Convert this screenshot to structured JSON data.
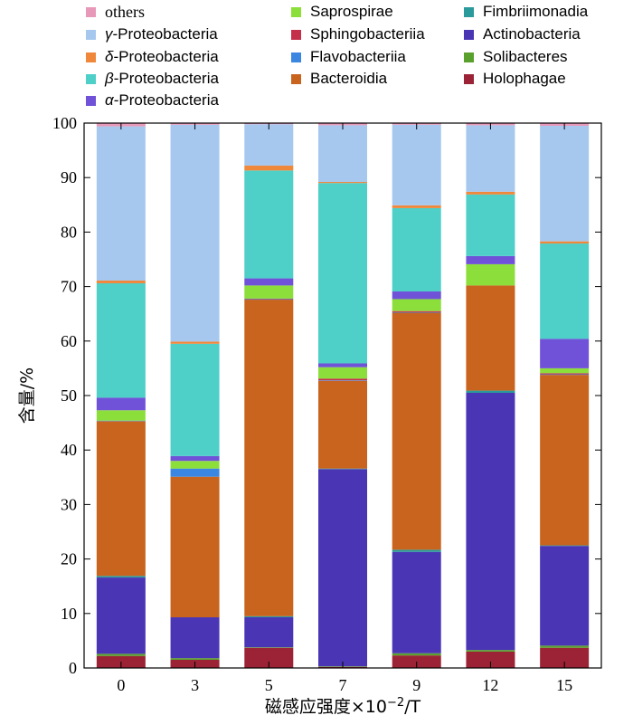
{
  "chart_data": {
    "type": "bar",
    "stacked": true,
    "xlabel_prefix": "磁感应强度×10",
    "xlabel_exp": "−2",
    "xlabel_suffix": "/T",
    "ylabel": "含量/%",
    "ylim": [
      0,
      100
    ],
    "yticks": [
      0,
      10,
      20,
      30,
      40,
      50,
      60,
      70,
      80,
      90,
      100
    ],
    "categories": [
      "0",
      "3",
      "5",
      "7",
      "9",
      "12",
      "15"
    ],
    "legend_position": "top",
    "series": [
      {
        "name": "Holophagae",
        "color": "#9b2335",
        "values": [
          2.2,
          1.5,
          3.7,
          0.2,
          2.3,
          3.0,
          3.7
        ]
      },
      {
        "name": "Solibacteres",
        "color": "#5aa02c",
        "values": [
          0.4,
          0.3,
          0.1,
          0.1,
          0.4,
          0.3,
          0.4
        ]
      },
      {
        "name": "Actinobacteria",
        "color": "#4a35b5",
        "values": [
          14.0,
          7.5,
          5.5,
          36.2,
          18.6,
          47.2,
          18.3
        ]
      },
      {
        "name": "Fimbriimonadia",
        "color": "#2a9a9a",
        "values": [
          0.3,
          0.0,
          0.2,
          0.1,
          0.4,
          0.4,
          0.1
        ]
      },
      {
        "name": "Bacteroidia",
        "color": "#c8641e",
        "values": [
          28.4,
          25.8,
          58.1,
          16.1,
          43.5,
          19.3,
          31.3
        ]
      },
      {
        "name": "Flavobacteriia",
        "color": "#3a86e0",
        "values": [
          0.1,
          1.5,
          0.1,
          0.1,
          0.1,
          0.0,
          0.1
        ]
      },
      {
        "name": "Sphingobacteriia",
        "color": "#c4304a",
        "values": [
          0.0,
          0.0,
          0.1,
          0.3,
          0.2,
          0.0,
          0.2
        ]
      },
      {
        "name": "Saprospirae",
        "color": "#8cde3a",
        "values": [
          1.9,
          1.4,
          2.4,
          2.1,
          2.2,
          3.9,
          0.9
        ]
      },
      {
        "name": "α-Proteobacteria",
        "color": "#7052d8",
        "values": [
          2.3,
          0.9,
          1.3,
          0.7,
          1.4,
          1.5,
          5.4
        ]
      },
      {
        "name": "β-Proteobacteria",
        "color": "#4ecfc8",
        "values": [
          21.0,
          20.6,
          19.8,
          33.1,
          15.3,
          11.3,
          17.5
        ]
      },
      {
        "name": "δ-Proteobacteria",
        "color": "#f0883c",
        "values": [
          0.5,
          0.4,
          0.9,
          0.2,
          0.5,
          0.5,
          0.4
        ]
      },
      {
        "name": "γ-Proteobacteria",
        "color": "#a6c8ee",
        "values": [
          28.3,
          39.8,
          7.6,
          10.4,
          14.8,
          12.2,
          21.2
        ]
      },
      {
        "name": "others",
        "color": "#e898b8",
        "values": [
          0.6,
          0.3,
          0.2,
          0.4,
          0.3,
          0.4,
          0.5
        ]
      }
    ]
  },
  "legend": [
    {
      "sym": "",
      "name": "others",
      "font": "serif",
      "color": "#e898b8"
    },
    {
      "sym": "",
      "name": "Saprospirae",
      "font": "sans",
      "color": "#8cde3a"
    },
    {
      "sym": "",
      "name": "Fimbriimonadia",
      "font": "sans",
      "color": "#2a9a9a"
    },
    {
      "sym": "γ",
      "name": "-Proteobacteria",
      "font": "sans",
      "color": "#a6c8ee"
    },
    {
      "sym": "",
      "name": "Sphingobacteriia",
      "font": "sans",
      "color": "#c4304a"
    },
    {
      "sym": "",
      "name": "Actinobacteria",
      "font": "sans",
      "color": "#4a35b5"
    },
    {
      "sym": "δ",
      "name": "-Proteobacteria",
      "font": "sans",
      "color": "#f0883c"
    },
    {
      "sym": "",
      "name": "Flavobacteriia",
      "font": "sans",
      "color": "#3a86e0"
    },
    {
      "sym": "",
      "name": "Solibacteres",
      "font": "sans",
      "color": "#5aa02c"
    },
    {
      "sym": "β",
      "name": "-Proteobacteria",
      "font": "sans",
      "color": "#4ecfc8"
    },
    {
      "sym": "",
      "name": "Bacteroidia",
      "font": "sans",
      "color": "#c8641e"
    },
    {
      "sym": "",
      "name": "Holophagae",
      "font": "sans",
      "color": "#9b2335"
    },
    {
      "sym": "α",
      "name": "-Proteobacteria",
      "font": "sans",
      "color": "#7052d8"
    }
  ]
}
